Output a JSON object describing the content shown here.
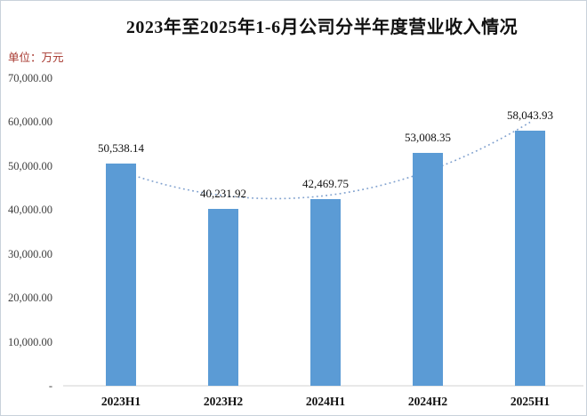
{
  "title": "2023年至2025年1-6月公司分半年度营业收入情况",
  "unit_label": "单位：万元",
  "colors": {
    "bar": "#5b9bd5",
    "trendline": "#7fa0ce",
    "axis_line": "#d9d9d9",
    "unit_text": "#a6352c",
    "text": "#111111"
  },
  "chart_data": {
    "type": "bar",
    "title": "2023年至2025年1-6月公司分半年度营业收入情况",
    "unit": "万元",
    "categories": [
      "2023H1",
      "2023H2",
      "2024H1",
      "2024H2",
      "2025H1"
    ],
    "values": [
      50538.14,
      40231.92,
      42469.75,
      53008.35,
      58043.93
    ],
    "data_labels": [
      "50,538.14",
      "40,231.92",
      "42,469.75",
      "53,008.35",
      "58,043.93"
    ],
    "y_tick_labels": [
      "70,000.00",
      "60,000.00",
      "50,000.00",
      "40,000.00",
      "30,000.00",
      "20,000.00",
      "10,000.00",
      "-"
    ],
    "y_tick_values": [
      70000,
      60000,
      50000,
      40000,
      30000,
      20000,
      10000,
      0
    ],
    "ylim": [
      0,
      70000
    ],
    "xlabel": "",
    "ylabel": "",
    "grid": false,
    "legend": false,
    "trendline": {
      "type": "polynomial-order2-dotted",
      "fit_of": "values"
    }
  }
}
